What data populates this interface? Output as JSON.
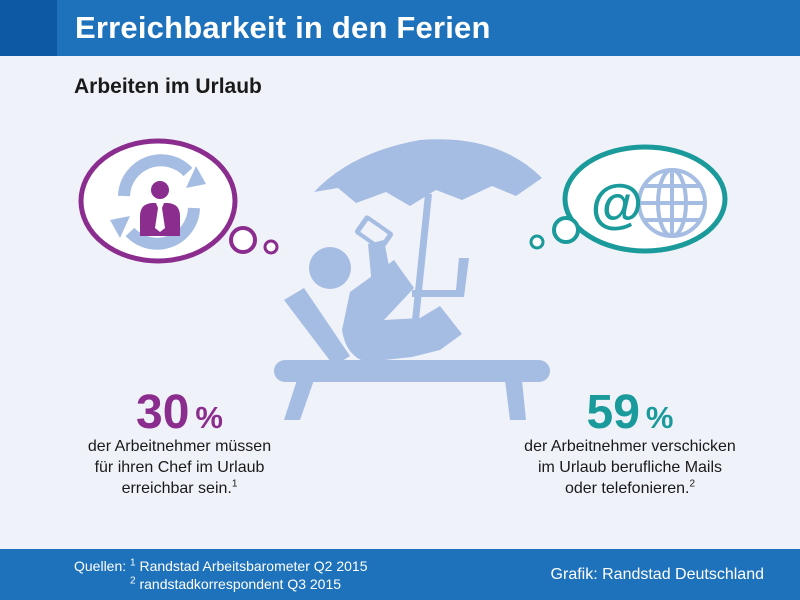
{
  "header": {
    "title": "Erreichbarkeit in den Ferien"
  },
  "subtitle": "Arbeiten im Urlaub",
  "stat_left": {
    "number": "30",
    "percent": "%",
    "line1": "der Arbeitnehmer müssen",
    "line2": "für ihren Chef im Urlaub",
    "line3": "erreichbar sein.",
    "footnote": "1"
  },
  "stat_right": {
    "number": "59",
    "percent": "%",
    "line1": "der Arbeitnehmer verschicken",
    "line2": "im Urlaub berufliche Mails",
    "line3": "oder telefonieren.",
    "footnote": "2"
  },
  "footer": {
    "sources_label": "Quellen:",
    "source1_mark": "1",
    "source1_text": "Randstad Arbeitsbarometer Q2 2015",
    "source2_mark": "2",
    "source2_text": "randstadkorrespondent Q3 2015",
    "credit": "Grafik: Randstad Deutschland"
  },
  "icons": {
    "left_bubble": "boss-cycle-icon",
    "right_bubble_at": "@",
    "right_bubble_globe": "globe-icon"
  },
  "colors": {
    "header_blue": "#1d72bb",
    "purple": "#8b2d8e",
    "teal": "#1a9a9a",
    "art_blue": "#a6bde3",
    "background": "#eff2f9"
  }
}
